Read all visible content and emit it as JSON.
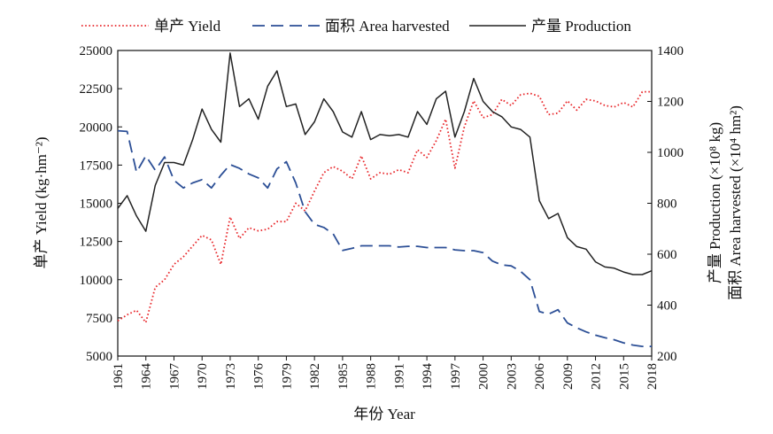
{
  "chart_data": {
    "type": "line",
    "xlabel": "年份 Year",
    "ylabel_left": "单产 Yield (kg·hm⁻²)",
    "ylabel_right_1": "产量 Production (×10⁸ kg)",
    "ylabel_right_2": "面积 Area harvested (×10⁴ hm²)",
    "xlim": [
      1961,
      2018
    ],
    "ylim_left": [
      5000,
      25000
    ],
    "ylim_right": [
      200,
      1400
    ],
    "x_ticks": [
      "1961",
      "1964",
      "1967",
      "1970",
      "1973",
      "1976",
      "1979",
      "1982",
      "1985",
      "1988",
      "1991",
      "1994",
      "1997",
      "2000",
      "2003",
      "2006",
      "2009",
      "2012",
      "2015",
      "2018"
    ],
    "y_left_ticks": [
      "5000",
      "7500",
      "10000",
      "12500",
      "15000",
      "17500",
      "20000",
      "22500",
      "25000"
    ],
    "y_right_ticks": [
      "200",
      "400",
      "600",
      "800",
      "1000",
      "1200",
      "1400"
    ],
    "legend_position": "top",
    "years": [
      1961,
      1962,
      1963,
      1964,
      1965,
      1966,
      1967,
      1968,
      1969,
      1970,
      1971,
      1972,
      1973,
      1974,
      1975,
      1976,
      1977,
      1978,
      1979,
      1980,
      1981,
      1982,
      1983,
      1984,
      1985,
      1986,
      1987,
      1988,
      1989,
      1990,
      1991,
      1992,
      1993,
      1994,
      1995,
      1996,
      1997,
      1998,
      1999,
      2000,
      2001,
      2002,
      2003,
      2004,
      2005,
      2006,
      2007,
      2008,
      2009,
      2010,
      2011,
      2012,
      2013,
      2014,
      2015,
      2016,
      2017,
      2018
    ],
    "series": [
      {
        "name": "单产 Yield",
        "axis": "left",
        "color": "#e8262a",
        "style": "dotted",
        "values": [
          7300,
          7700,
          8000,
          7200,
          9500,
          10000,
          11000,
          11500,
          12200,
          12900,
          12600,
          11000,
          14100,
          12700,
          13400,
          13200,
          13300,
          13800,
          13800,
          15000,
          14500,
          15800,
          17000,
          17400,
          17100,
          16600,
          18100,
          16600,
          17000,
          16900,
          17200,
          17000,
          18500,
          18000,
          19100,
          20500,
          17300,
          20000,
          21700,
          20600,
          20800,
          21800,
          21400,
          22100,
          22200,
          22000,
          20800,
          20900,
          21700,
          21100,
          21800,
          21700,
          21400,
          21300,
          21600,
          21300,
          22300,
          22300
        ]
      },
      {
        "name": "面积 Area harvested",
        "axis": "right",
        "color": "#2c4f96",
        "style": "dashed",
        "values": [
          1085,
          1082,
          922,
          986,
          930,
          982,
          890,
          860,
          880,
          893,
          860,
          910,
          952,
          937,
          915,
          900,
          860,
          935,
          963,
          880,
          767,
          717,
          705,
          680,
          615,
          623,
          633,
          633,
          633,
          633,
          628,
          631,
          631,
          626,
          626,
          626,
          617,
          614,
          614,
          606,
          573,
          558,
          554,
          533,
          500,
          375,
          365,
          382,
          330,
          311,
          295,
          282,
          272,
          264,
          252,
          243,
          238,
          238
        ]
      },
      {
        "name": "产量 Production",
        "axis": "right",
        "color": "#222222",
        "style": "solid",
        "values": [
          780,
          830,
          750,
          690,
          870,
          960,
          960,
          950,
          1050,
          1170,
          1090,
          1040,
          1390,
          1180,
          1210,
          1130,
          1260,
          1320,
          1180,
          1190,
          1070,
          1120,
          1210,
          1160,
          1080,
          1060,
          1160,
          1050,
          1070,
          1065,
          1070,
          1060,
          1160,
          1110,
          1210,
          1240,
          1060,
          1160,
          1290,
          1200,
          1160,
          1140,
          1100,
          1090,
          1060,
          810,
          740,
          760,
          665,
          630,
          620,
          570,
          550,
          545,
          530,
          520,
          520,
          535
        ]
      }
    ]
  }
}
